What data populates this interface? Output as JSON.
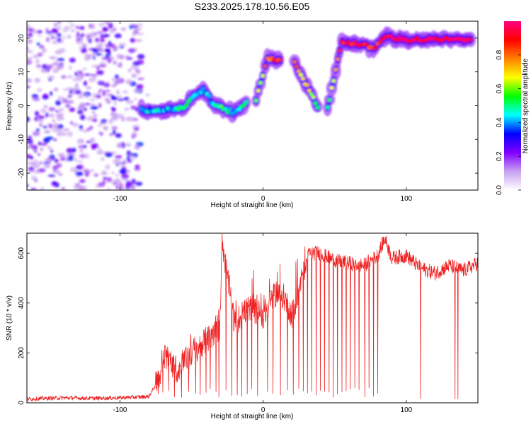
{
  "title": "S233.2025.178.10.56.E05",
  "chart_data": [
    {
      "type": "heatmap",
      "xlabel": "Height of straight line (km)",
      "ylabel": "Frequency (Hz)",
      "xlim": [
        -165,
        150
      ],
      "ylim": [
        -25,
        25
      ],
      "xticks": [
        -100,
        0,
        100
      ],
      "yticks": [
        -20,
        -10,
        0,
        10,
        20
      ],
      "colorbar": {
        "label": "Normalized spectral amplitude",
        "range": [
          0,
          1
        ],
        "ticks": [
          0.0,
          0.2,
          0.4,
          0.6,
          0.8
        ],
        "colormap": [
          "#ffffff",
          "#c8a0f0",
          "#8000ff",
          "#0000ff",
          "#00ffff",
          "#00ff00",
          "#ffff00",
          "#ff8000",
          "#ff0000",
          "#ff0080"
        ]
      },
      "ridge": [
        {
          "x": -85,
          "f": -1,
          "amp": 0.4
        },
        {
          "x": -75,
          "f": -1.5,
          "amp": 0.45
        },
        {
          "x": -65,
          "f": -1,
          "amp": 0.4
        },
        {
          "x": -55,
          "f": -0.5,
          "amp": 0.5
        },
        {
          "x": -48,
          "f": 3,
          "amp": 0.45
        },
        {
          "x": -42,
          "f": 5,
          "amp": 0.4
        },
        {
          "x": -35,
          "f": 0.5,
          "amp": 0.45
        },
        {
          "x": -28,
          "f": -1,
          "amp": 0.55
        },
        {
          "x": -20,
          "f": -2,
          "amp": 0.4
        },
        {
          "x": -12,
          "f": 1,
          "amp": 0.5
        },
        {
          "x": -5,
          "f": 1.5,
          "amp": 0.6
        },
        {
          "x": 3,
          "f": 14,
          "amp": 0.8
        },
        {
          "x": 12,
          "f": 13.5,
          "amp": 0.85
        },
        {
          "x": 22,
          "f": 13,
          "amp": 0.8
        },
        {
          "x": 38,
          "f": -0.5,
          "amp": 0.55
        },
        {
          "x": 45,
          "f": -0.5,
          "amp": 0.5
        },
        {
          "x": 55,
          "f": 19,
          "amp": 0.9
        },
        {
          "x": 68,
          "f": 18,
          "amp": 0.9
        },
        {
          "x": 77,
          "f": 17,
          "amp": 0.85
        },
        {
          "x": 86,
          "f": 20.5,
          "amp": 0.95
        },
        {
          "x": 100,
          "f": 19.5,
          "amp": 0.95
        },
        {
          "x": 125,
          "f": 19.5,
          "amp": 0.95
        },
        {
          "x": 145,
          "f": 19.5,
          "amp": 0.95
        }
      ]
    },
    {
      "type": "line",
      "xlabel": "Height of straight line (km)",
      "ylabel": "SNR (10 * v/v)",
      "xlim": [
        -165,
        150
      ],
      "ylim": [
        0,
        680
      ],
      "xticks": [
        -100,
        0,
        100
      ],
      "yticks": [
        0,
        200,
        400,
        600
      ],
      "color": "#ee2222",
      "series": [
        {
          "x": [
            -165,
            -140,
            -120,
            -100,
            -80,
            -72,
            -70,
            -60,
            -50,
            -40,
            -30,
            -29,
            -20,
            -10,
            0,
            10,
            15,
            20,
            28,
            32,
            40,
            50,
            60,
            70,
            80,
            85,
            90,
            100,
            110,
            120,
            130,
            140,
            150
          ],
          "y": [
            15,
            20,
            18,
            20,
            25,
            100,
            200,
            130,
            200,
            250,
            300,
            660,
            320,
            380,
            350,
            450,
            420,
            350,
            520,
            600,
            600,
            570,
            560,
            550,
            590,
            660,
            580,
            590,
            540,
            520,
            550,
            530,
            560
          ]
        }
      ],
      "dropouts_x": [
        -70,
        -66,
        -62,
        -57,
        -52,
        -47,
        -44,
        -40,
        -37,
        -33,
        -31,
        -26,
        -22,
        -18,
        -15,
        -11,
        -8,
        -4,
        3,
        7,
        12,
        17,
        21,
        25,
        28,
        31,
        34,
        37,
        40,
        43,
        46,
        49,
        52,
        55,
        58,
        61,
        64,
        67,
        71,
        74,
        77,
        80,
        110,
        134,
        136
      ]
    }
  ]
}
